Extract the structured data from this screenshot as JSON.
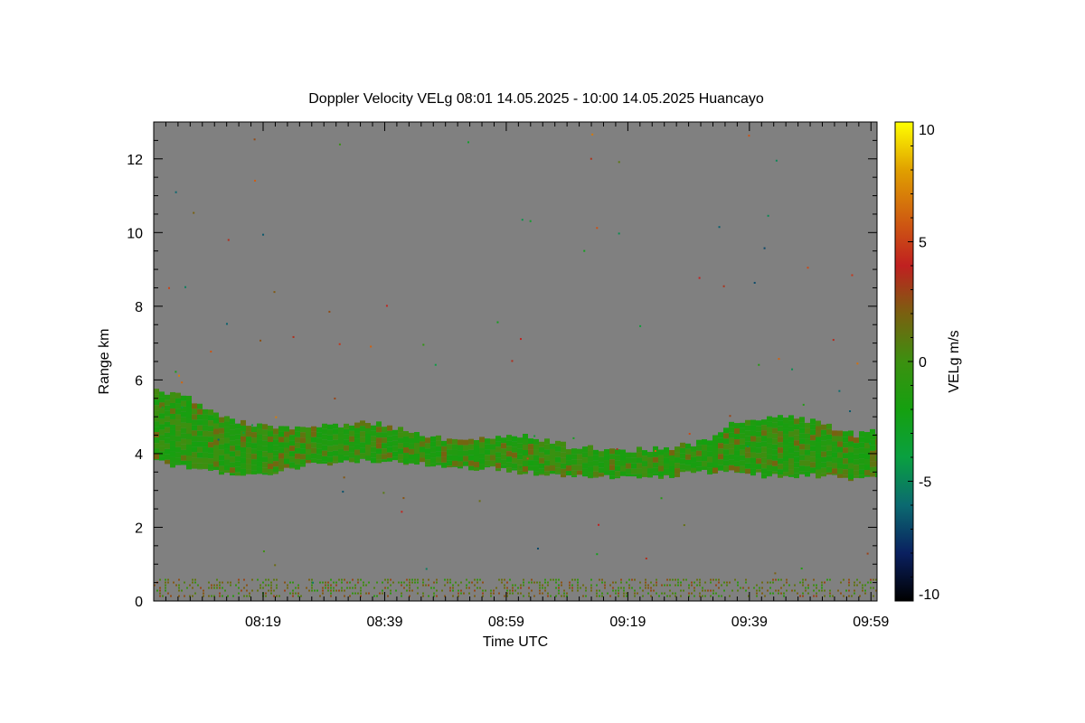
{
  "chart_data": {
    "type": "heatmap",
    "title": "Doppler Velocity VELg   08:01 14.05.2025 - 10:00 14.05.2025 Huancayo",
    "xlabel": "Time UTC",
    "ylabel": "Range km",
    "x_ticks": [
      "08:19",
      "08:39",
      "08:59",
      "09:19",
      "09:39",
      "09:59"
    ],
    "x_tick_minutes": [
      18,
      38,
      58,
      78,
      98,
      118
    ],
    "xlim_minutes": [
      0,
      119
    ],
    "y_ticks": [
      "0",
      "2",
      "4",
      "6",
      "8",
      "10",
      "12"
    ],
    "y_tick_values": [
      0,
      2,
      4,
      6,
      8,
      10,
      12
    ],
    "ylim": [
      0,
      13
    ],
    "background_color": "#808080",
    "colorbar": {
      "label": "VELg m/s",
      "ticks": [
        "10",
        "5",
        "0",
        "-5",
        "-10"
      ],
      "tick_values": [
        10,
        5,
        0,
        -5,
        -10
      ],
      "range": [
        -10,
        10
      ],
      "colors": [
        "#000000",
        "#0a2060",
        "#0b6a70",
        "#0aa040",
        "#15a010",
        "#3c9010",
        "#7a6010",
        "#c02020",
        "#d06010",
        "#e0a000",
        "#ffff00"
      ]
    },
    "layers": [
      {
        "description_value": "cloud layer",
        "velocity_range": [
          -2,
          2
        ],
        "time_minutes": [
          0,
          5,
          10,
          15,
          20,
          25,
          30,
          35,
          40,
          45,
          50,
          55,
          60,
          65,
          70,
          75,
          80,
          85,
          90,
          95,
          100,
          105,
          110,
          115,
          119
        ],
        "base_km": [
          3.8,
          3.6,
          3.5,
          3.4,
          3.5,
          3.7,
          3.75,
          3.8,
          3.75,
          3.7,
          3.6,
          3.6,
          3.5,
          3.4,
          3.35,
          3.35,
          3.3,
          3.4,
          3.5,
          3.5,
          3.4,
          3.4,
          3.4,
          3.3,
          3.4
        ],
        "top_km": [
          5.8,
          5.5,
          5.1,
          4.8,
          4.7,
          4.75,
          4.8,
          4.85,
          4.7,
          4.4,
          4.4,
          4.5,
          4.5,
          4.3,
          4.15,
          4.15,
          4.1,
          4.2,
          4.3,
          4.9,
          5.0,
          4.95,
          4.8,
          4.5,
          4.6
        ]
      },
      {
        "description_value": "near-surface returns",
        "velocity_range": [
          -1,
          3
        ],
        "base_km": 0.1,
        "top_km": 0.6
      }
    ]
  }
}
